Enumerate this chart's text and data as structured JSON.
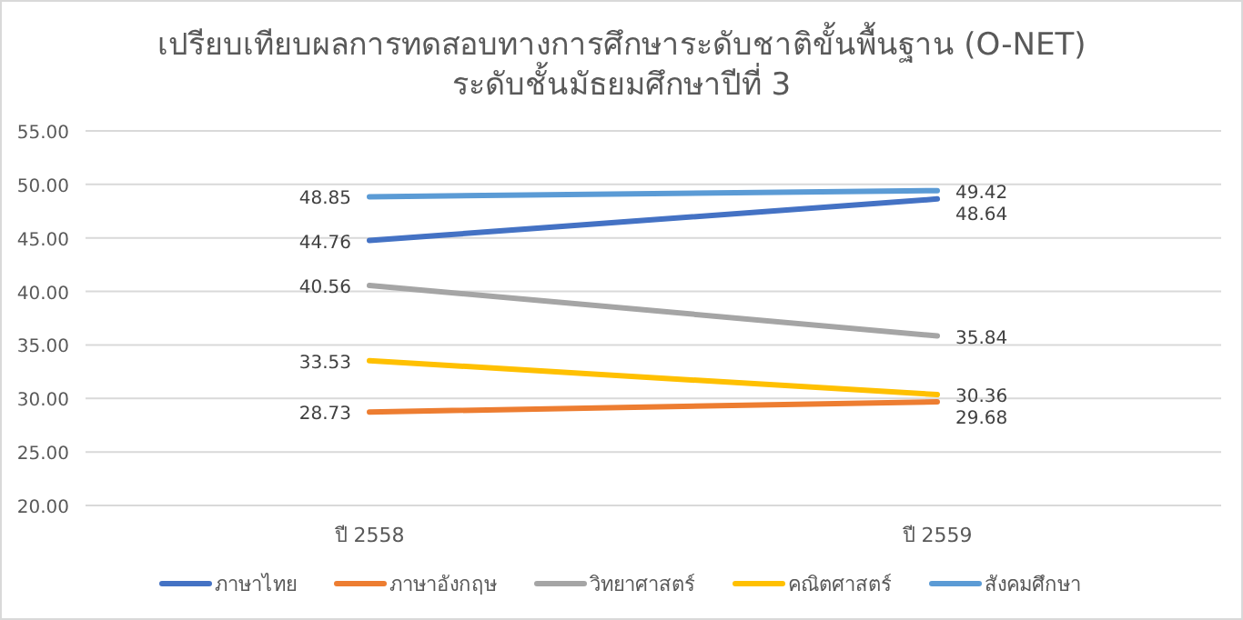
{
  "chart_data": {
    "type": "line",
    "title": "เปรียบเทียบผลการทดสอบทางการศึกษาระดับชาติขั้นพื้นฐาน (O-NET)",
    "subtitle": "ระดับชั้นมัธยมศึกษาปีที่ 3",
    "categories": [
      "ปี 2558",
      "ปี 2559"
    ],
    "ylim": [
      20,
      55
    ],
    "yticks": [
      {
        "value": 20,
        "label": "20.00"
      },
      {
        "value": 25,
        "label": "25.00"
      },
      {
        "value": 30,
        "label": "30.00"
      },
      {
        "value": 35,
        "label": "35.00"
      },
      {
        "value": 40,
        "label": "40.00"
      },
      {
        "value": 45,
        "label": "45.00"
      },
      {
        "value": 50,
        "label": "50.00"
      },
      {
        "value": 55,
        "label": "55.00"
      }
    ],
    "grid": "y",
    "legend": "bottom",
    "data_labels": true,
    "marker": "none",
    "series": [
      {
        "name": "ภาษาไทย",
        "color": "#4472c4",
        "values": [
          44.76,
          48.64
        ]
      },
      {
        "name": "ภาษาอังกฤษ",
        "color": "#ed7d31",
        "values": [
          28.73,
          29.68
        ]
      },
      {
        "name": "วิทยาศาสตร์",
        "color": "#a5a5a5",
        "values": [
          40.56,
          35.84
        ]
      },
      {
        "name": "คณิตศาสตร์",
        "color": "#ffc000",
        "values": [
          33.53,
          30.36
        ]
      },
      {
        "name": "สังคมศึกษา",
        "color": "#5b9bd5",
        "values": [
          48.85,
          49.42
        ]
      }
    ]
  }
}
